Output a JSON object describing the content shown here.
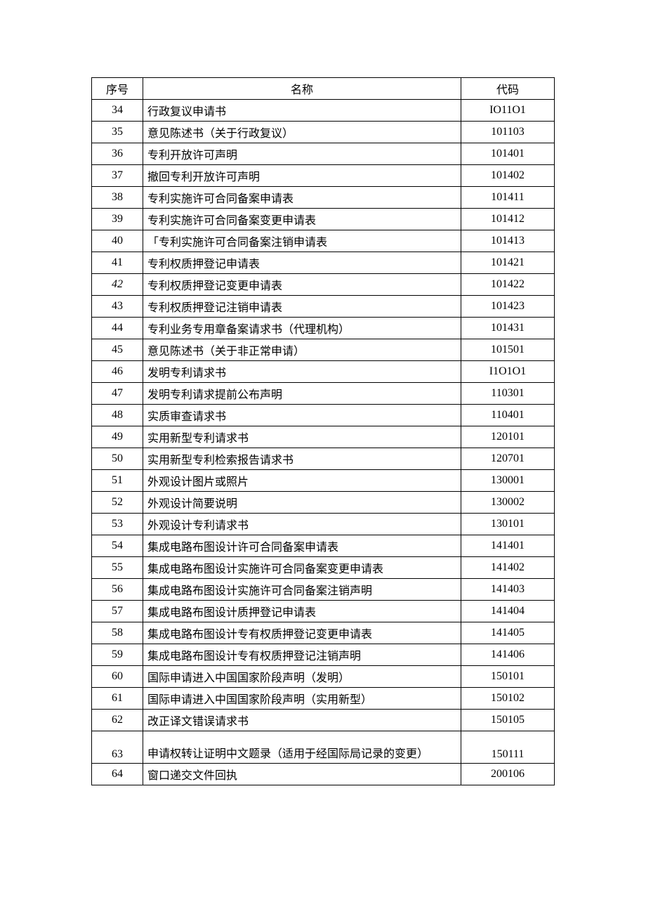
{
  "table": {
    "columns": [
      "序号",
      "名称",
      "代码"
    ],
    "rows": [
      {
        "seq": "34",
        "name": "行政复议申请书",
        "code": "IO11O1"
      },
      {
        "seq": "35",
        "name": "意见陈述书（关于行政复议）",
        "code": "101103"
      },
      {
        "seq": "36",
        "name": "专利开放许可声明",
        "code": "101401"
      },
      {
        "seq": "37",
        "name": "撤回专利开放许可声明",
        "code": "101402"
      },
      {
        "seq": "38",
        "name": "专利实施许可合同备案申请表",
        "code": "101411"
      },
      {
        "seq": "39",
        "name": "专利实施许可合同备案变更申请表",
        "code": "101412"
      },
      {
        "seq": "40",
        "name": "「专利实施许可合同备案注销申请表",
        "code": "101413"
      },
      {
        "seq": "41",
        "name": "专利权质押登记申请表",
        "code": "101421"
      },
      {
        "seq": "42",
        "name": "专利权质押登记变更申请表",
        "code": "101422",
        "seqItalic": true
      },
      {
        "seq": "43",
        "name": "专利权质押登记注销申请表",
        "code": "101423"
      },
      {
        "seq": "44",
        "name": "专利业务专用章备案请求书（代理机构）",
        "code": "101431"
      },
      {
        "seq": "45",
        "name": "意见陈述书（关于非正常申请）",
        "code": "101501"
      },
      {
        "seq": "46",
        "name": "发明专利请求书",
        "code": "I1O1O1"
      },
      {
        "seq": "47",
        "name": "发明专利请求提前公布声明",
        "code": "110301"
      },
      {
        "seq": "48",
        "name": "实质审查请求书",
        "code": "110401"
      },
      {
        "seq": "49",
        "name": "实用新型专利请求书",
        "code": "120101"
      },
      {
        "seq": "50",
        "name": "实用新型专利检索报告请求书",
        "code": "120701"
      },
      {
        "seq": "51",
        "name": "外观设计图片或照片",
        "code": "130001"
      },
      {
        "seq": "52",
        "name": "外观设计简要说明",
        "code": "130002"
      },
      {
        "seq": "53",
        "name": "外观设计专利请求书",
        "code": "130101"
      },
      {
        "seq": "54",
        "name": "集成电路布图设计许可合同备案申请表",
        "code": "141401"
      },
      {
        "seq": "55",
        "name": "集成电路布图设计实施许可合同备案变更申请表",
        "code": "141402"
      },
      {
        "seq": "56",
        "name": "集成电路布图设计实施许可合同备案注销声明",
        "code": "141403"
      },
      {
        "seq": "57",
        "name": "集成电路布图设计质押登记申请表",
        "code": "141404"
      },
      {
        "seq": "58",
        "name": "集成电路布图设计专有权质押登记变更申请表",
        "code": "141405"
      },
      {
        "seq": "59",
        "name": "集成电路布图设计专有权质押登记注销声明",
        "code": "141406"
      },
      {
        "seq": "60",
        "name": "国际申请进入中国国家阶段声明（发明）",
        "code": "150101"
      },
      {
        "seq": "61",
        "name": "国际申请进入中国国家阶段声明（实用新型）",
        "code": "150102"
      },
      {
        "seq": "62",
        "name": "改正译文错误请求书",
        "code": "150105"
      },
      {
        "seq": "63",
        "name": "申请权转让证明中文题录（适用于经国际局记录的变更）",
        "code": "150111",
        "tall": true
      },
      {
        "seq": "64",
        "name": "窗口递交文件回执",
        "code": "200106"
      }
    ]
  },
  "styling": {
    "border_color": "#000000",
    "background_color": "#ffffff",
    "text_color": "#000000",
    "font_family": "SimSun",
    "font_size": 16,
    "col_widths": {
      "seq": 60,
      "code": 120
    }
  }
}
